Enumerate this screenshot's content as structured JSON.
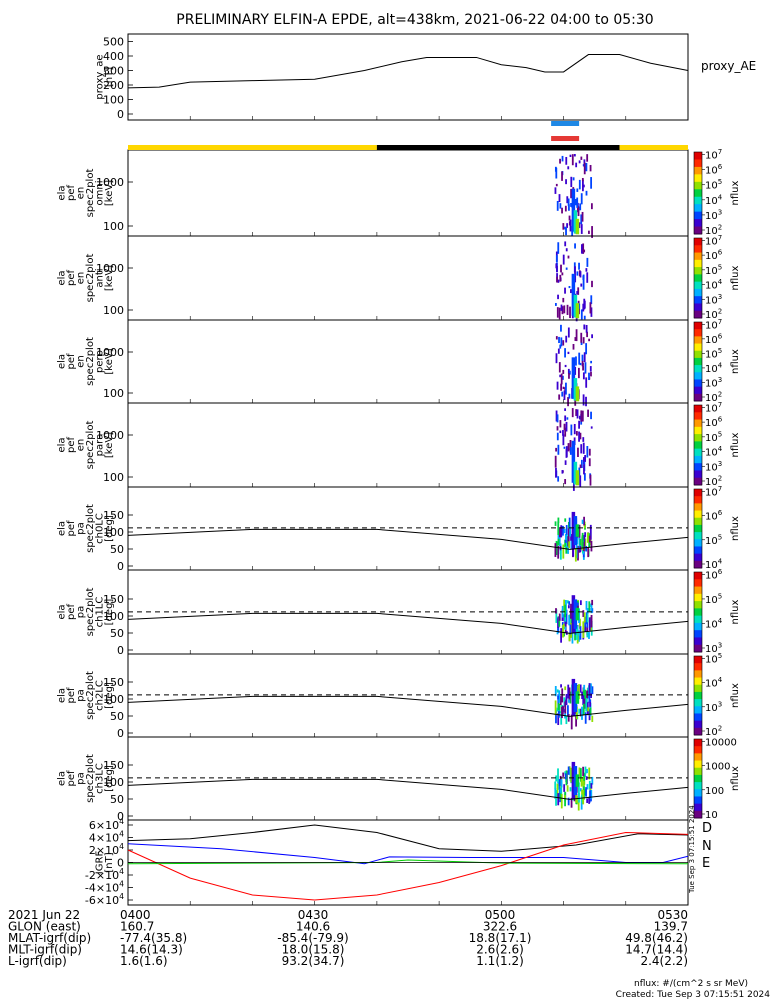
{
  "title": "PRELIMINARY ELFIN-A EPDE, alt=438km, 2021-06-22 04:00 to 05:30",
  "chart_data": {
    "type": "line",
    "panels": [
      {
        "name": "proxy_ae",
        "ylabel_lines": [
          "proxy_ae",
          "[nT]"
        ],
        "legend": "proxy_AE",
        "ylim": [
          0,
          550
        ],
        "yticks": [
          "0",
          "100",
          "200",
          "300",
          "400",
          "500"
        ],
        "x_min": [
          0,
          5,
          10,
          20,
          30,
          38,
          44,
          48,
          52,
          56,
          60,
          64,
          67,
          70,
          74,
          79,
          84,
          90
        ],
        "values": [
          180,
          185,
          220,
          230,
          240,
          300,
          360,
          390,
          390,
          390,
          340,
          320,
          290,
          290,
          410,
          410,
          350,
          300
        ]
      },
      {
        "name": "ela_pef_en_spec2plot_omni",
        "ylabel_lines": [
          "ela",
          "pef",
          "en",
          "spec2plot",
          "omni",
          "[keV]"
        ],
        "yticks": [
          "100",
          "1000"
        ],
        "colorbar": {
          "label": "nflux",
          "ticks": [
            "10^2",
            "10^3",
            "10^4",
            "10^5",
            "10^6",
            "10^7"
          ]
        }
      },
      {
        "name": "ela_pef_en_spec2plot_anti",
        "ylabel_lines": [
          "ela",
          "pef",
          "en",
          "spec2plot",
          "anti",
          "[keV]"
        ],
        "yticks": [
          "100",
          "1000"
        ],
        "colorbar": {
          "label": "nflux",
          "ticks": [
            "10^2",
            "10^3",
            "10^4",
            "10^5",
            "10^6",
            "10^7"
          ]
        }
      },
      {
        "name": "ela_pef_en_spec2plot_perp",
        "ylabel_lines": [
          "ela",
          "pef",
          "en",
          "spec2plot",
          "perp",
          "[keV]"
        ],
        "yticks": [
          "100",
          "1000"
        ],
        "colorbar": {
          "label": "nflux",
          "ticks": [
            "10^2",
            "10^3",
            "10^4",
            "10^5",
            "10^6",
            "10^7"
          ]
        }
      },
      {
        "name": "ela_pef_en_spec2plot_para",
        "ylabel_lines": [
          "ela",
          "pef",
          "en",
          "spec2plot",
          "para",
          "[keV]"
        ],
        "yticks": [
          "100",
          "1000"
        ],
        "colorbar": {
          "label": "nflux",
          "ticks": [
            "10^2",
            "10^3",
            "10^4",
            "10^5",
            "10^6",
            "10^7"
          ]
        }
      },
      {
        "name": "ela_pef_pa_spec2plot_ch0LC",
        "ylabel_lines": [
          "ela",
          "pef",
          "pa",
          "spec2plot",
          "ch0LC",
          "[deg]"
        ],
        "yticks": [
          "0",
          "50",
          "100",
          "150"
        ],
        "colorbar": {
          "label": "nflux",
          "ticks": [
            "10^4",
            "10^5",
            "10^6",
            "10^7"
          ]
        }
      },
      {
        "name": "ela_pef_pa_spec2plot_ch1LC",
        "ylabel_lines": [
          "ela",
          "pef",
          "pa",
          "spec2plot",
          "ch1LC",
          "[deg]"
        ],
        "yticks": [
          "0",
          "50",
          "100",
          "150"
        ],
        "colorbar": {
          "label": "nflux",
          "ticks": [
            "10^3",
            "10^4",
            "10^5",
            "10^6"
          ]
        }
      },
      {
        "name": "ela_pef_pa_spec2plot_ch2LC",
        "ylabel_lines": [
          "ela",
          "pef",
          "pa",
          "spec2plot",
          "ch2LC",
          "[deg]"
        ],
        "yticks": [
          "0",
          "50",
          "100",
          "150"
        ],
        "colorbar": {
          "label": "nflux",
          "ticks": [
            "10^2",
            "10^3",
            "10^4",
            "10^5"
          ]
        }
      },
      {
        "name": "ela_pef_pa_spec2plot_ch3LC",
        "ylabel_lines": [
          "ela",
          "pef",
          "pa",
          "spec2plot",
          "ch3LC",
          "[deg]"
        ],
        "yticks": [
          "0",
          "50",
          "100",
          "150"
        ],
        "colorbar": {
          "label": "nflux",
          "ticks": [
            "10",
            "100",
            "1000",
            "10000"
          ]
        }
      },
      {
        "name": "IGRF",
        "ylabel_lines": [
          "IGRF",
          "[nT]"
        ],
        "ylim": [
          -65000,
          65000
        ],
        "yticks": [
          "-6×10^4",
          "-4×10^4",
          "-2×10^4",
          "0",
          "2×10^4",
          "4×10^4",
          "6×10^4"
        ],
        "series": [
          {
            "name": "D",
            "color": "#ff0000"
          },
          {
            "name": "N",
            "color": "#0000ff"
          },
          {
            "name": "E",
            "color": "#00cc00"
          }
        ]
      }
    ],
    "x_tick_labels": [
      "0400",
      "0430",
      "0500",
      "0530"
    ],
    "mlt_reference_c": [
      40,
      40
    ],
    "sector_bar": {
      "colors": [
        "#ffd700",
        "#000000",
        "#ffd700"
      ],
      "x_min": [
        0,
        40,
        79,
        90
      ]
    },
    "ephemeris": {
      "rows": [
        {
          "label": "2021 Jun 22",
          "values": [
            "0400",
            "0430",
            "0500",
            "0530"
          ]
        },
        {
          "label": "GLON (east)",
          "values": [
            "160.7",
            "140.6",
            "322.6",
            "139.7"
          ]
        },
        {
          "label": "MLAT-igrf(dip)",
          "values": [
            "-77.4(35.8)",
            "-85.4(-79.9)",
            "18.8(17.1)",
            "49.8(46.2)"
          ]
        },
        {
          "label": "MLT-igrf(dip)",
          "values": [
            "14.6(14.3)",
            "18.0(15.8)",
            "2.6(2.6)",
            "14.7(14.4)"
          ]
        },
        {
          "label": "L-igrf(dip)",
          "values": [
            "1.6(1.6)",
            "93.2(34.7)",
            "1.1(1.2)",
            "2.4(2.2)"
          ]
        }
      ]
    }
  },
  "footer": {
    "units": "nflux: #/(cm^2 s sr MeV)",
    "created": "Created: Tue Sep  3 07:15:51 2024",
    "side_stamp": "Tue Sep  3 07:15:51 2024"
  }
}
